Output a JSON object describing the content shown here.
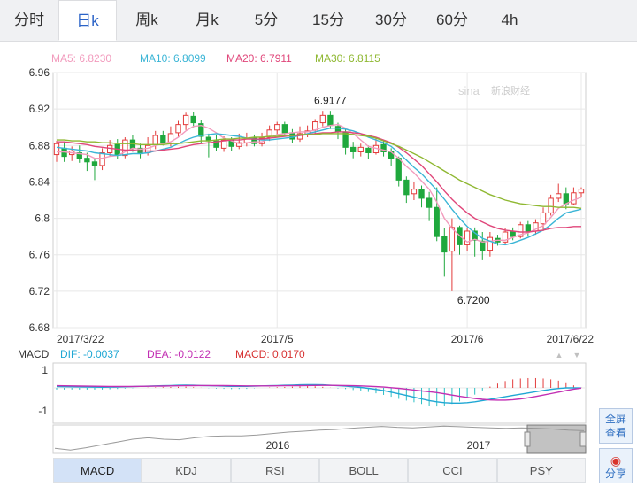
{
  "tabs": [
    "分时",
    "日k",
    "周k",
    "月k",
    "5分",
    "15分",
    "30分",
    "60分",
    "4h"
  ],
  "active_tab": 1,
  "ma_legend": [
    {
      "label": "MA5: 6.8230",
      "color": "#f29bbd"
    },
    {
      "label": "MA10: 6.8099",
      "color": "#3bb5d6"
    },
    {
      "label": "MA20: 6.7911",
      "color": "#e0467a"
    },
    {
      "label": "MA30: 6.8115",
      "color": "#8fb832"
    }
  ],
  "watermark": "新浪财经",
  "macd_legend": {
    "name": "MACD",
    "items": [
      {
        "label": "DIF: -0.0037",
        "color": "#1fa7d4"
      },
      {
        "label": "DEA: -0.0122",
        "color": "#c22fb3"
      },
      {
        "label": "MACD: 0.0170",
        "color": "#d73232"
      }
    ]
  },
  "indicator_tabs": [
    "MACD",
    "KDJ",
    "RSI",
    "BOLL",
    "CCI",
    "PSY"
  ],
  "active_indicator": 0,
  "side_buttons": [
    {
      "line1": "全屏",
      "line2": "查看"
    },
    {
      "line1": "分享",
      "line2": ""
    }
  ],
  "colors": {
    "up": "#e33b3b",
    "down": "#1fa83d",
    "grid": "#e8e8e8"
  },
  "chart_data": [
    {
      "type": "candlestick",
      "title": "",
      "ylim": [
        6.68,
        6.96
      ],
      "y_ticks": [
        6.68,
        6.72,
        6.76,
        6.8,
        6.84,
        6.88,
        6.92,
        6.96
      ],
      "y_tick_labels": [
        "6.68",
        "6.72",
        "6.76",
        "6.8",
        "6.84",
        "6.88",
        "6.92",
        "6.96"
      ],
      "x_tick_labels": [
        {
          "label": "2017/3/22",
          "index": 0
        },
        {
          "label": "2017/5",
          "index": 29
        },
        {
          "label": "2017/6",
          "index": 54
        },
        {
          "label": "2017/6/22",
          "index": 69
        }
      ],
      "annotations": [
        {
          "text": "6.9177",
          "index": 36,
          "value": 6.9177
        },
        {
          "text": "6.7200",
          "index": 52,
          "value": 6.72
        }
      ],
      "candles": [
        [
          6.87,
          6.882,
          6.885,
          6.862
        ],
        [
          6.877,
          6.868,
          6.884,
          6.862
        ],
        [
          6.87,
          6.874,
          6.879,
          6.863
        ],
        [
          6.872,
          6.866,
          6.88,
          6.861
        ],
        [
          6.866,
          6.862,
          6.872,
          6.852
        ],
        [
          6.862,
          6.858,
          6.866,
          6.842
        ],
        [
          6.858,
          6.872,
          6.877,
          6.853
        ],
        [
          6.872,
          6.88,
          6.886,
          6.868
        ],
        [
          6.881,
          6.87,
          6.887,
          6.865
        ],
        [
          6.869,
          6.886,
          6.889,
          6.866
        ],
        [
          6.886,
          6.877,
          6.891,
          6.873
        ],
        [
          6.877,
          6.871,
          6.882,
          6.866
        ],
        [
          6.872,
          6.88,
          6.889,
          6.869
        ],
        [
          6.881,
          6.891,
          6.896,
          6.876
        ],
        [
          6.891,
          6.883,
          6.896,
          6.88
        ],
        [
          6.882,
          6.893,
          6.901,
          6.879
        ],
        [
          6.894,
          6.903,
          6.907,
          6.889
        ],
        [
          6.903,
          6.913,
          6.916,
          6.897
        ],
        [
          6.912,
          6.905,
          6.917,
          6.9
        ],
        [
          6.904,
          6.89,
          6.908,
          6.882
        ],
        [
          6.889,
          6.885,
          6.893,
          6.867
        ],
        [
          6.885,
          6.878,
          6.891,
          6.874
        ],
        [
          6.877,
          6.886,
          6.89,
          6.873
        ],
        [
          6.886,
          6.879,
          6.889,
          6.874
        ],
        [
          6.879,
          6.883,
          6.893,
          6.876
        ],
        [
          6.883,
          6.888,
          6.894,
          6.879
        ],
        [
          6.888,
          6.882,
          6.892,
          6.879
        ],
        [
          6.882,
          6.888,
          6.894,
          6.879
        ],
        [
          6.889,
          6.897,
          6.902,
          6.885
        ],
        [
          6.897,
          6.903,
          6.906,
          6.891
        ],
        [
          6.903,
          6.894,
          6.906,
          6.89
        ],
        [
          6.894,
          6.887,
          6.898,
          6.883
        ],
        [
          6.887,
          6.893,
          6.901,
          6.884
        ],
        [
          6.892,
          6.896,
          6.902,
          6.889
        ],
        [
          6.897,
          6.906,
          6.909,
          6.893
        ],
        [
          6.905,
          6.913,
          6.918,
          6.901
        ],
        [
          6.913,
          6.902,
          6.918,
          6.898
        ],
        [
          6.901,
          6.895,
          6.905,
          6.887
        ],
        [
          6.895,
          6.878,
          6.899,
          6.87
        ],
        [
          6.878,
          6.873,
          6.884,
          6.866
        ],
        [
          6.873,
          6.878,
          6.882,
          6.868
        ],
        [
          6.877,
          6.872,
          6.88,
          6.865
        ],
        [
          6.872,
          6.88,
          6.888,
          6.87
        ],
        [
          6.881,
          6.873,
          6.886,
          6.868
        ],
        [
          6.873,
          6.866,
          6.877,
          6.857
        ],
        [
          6.866,
          6.842,
          6.868,
          6.835
        ],
        [
          6.842,
          6.826,
          6.846,
          6.817
        ],
        [
          6.827,
          6.832,
          6.84,
          6.82
        ],
        [
          6.832,
          6.822,
          6.836,
          6.812
        ],
        [
          6.822,
          6.812,
          6.829,
          6.797
        ],
        [
          6.812,
          6.78,
          6.834,
          6.775
        ],
        [
          6.78,
          6.763,
          6.789,
          6.736
        ],
        [
          6.764,
          6.79,
          6.8,
          6.72
        ],
        [
          6.79,
          6.771,
          6.792,
          6.76
        ],
        [
          6.771,
          6.786,
          6.79,
          6.764
        ],
        [
          6.786,
          6.776,
          6.79,
          6.758
        ],
        [
          6.775,
          6.765,
          6.785,
          6.754
        ],
        [
          6.765,
          6.779,
          6.785,
          6.758
        ],
        [
          6.778,
          6.774,
          6.782,
          6.77
        ],
        [
          6.774,
          6.785,
          6.789,
          6.771
        ],
        [
          6.785,
          6.78,
          6.79,
          6.776
        ],
        [
          6.78,
          6.793,
          6.796,
          6.778
        ],
        [
          6.793,
          6.786,
          6.797,
          6.78
        ],
        [
          6.786,
          6.795,
          6.799,
          6.782
        ],
        [
          6.794,
          6.806,
          6.812,
          6.786
        ],
        [
          6.806,
          6.822,
          6.826,
          6.803
        ],
        [
          6.822,
          6.827,
          6.838,
          6.818
        ],
        [
          6.827,
          6.816,
          6.834,
          6.81
        ],
        [
          6.816,
          6.828,
          6.834,
          6.815
        ],
        [
          6.828,
          6.832,
          6.834,
          6.823
        ]
      ],
      "ma5": [
        6.873,
        6.873,
        6.872,
        6.871,
        6.87,
        6.866,
        6.866,
        6.868,
        6.869,
        6.873,
        6.877,
        6.876,
        6.877,
        6.88,
        6.882,
        6.884,
        6.889,
        6.896,
        6.901,
        6.902,
        6.899,
        6.894,
        6.888,
        6.885,
        6.882,
        6.883,
        6.884,
        6.884,
        6.888,
        6.892,
        6.893,
        6.894,
        6.895,
        6.895,
        6.897,
        6.9,
        6.902,
        6.903,
        6.899,
        6.893,
        6.886,
        6.879,
        6.877,
        6.875,
        6.873,
        6.866,
        6.857,
        6.85,
        6.841,
        6.832,
        6.818,
        6.8,
        6.789,
        6.781,
        6.774,
        6.777,
        6.774,
        6.775,
        6.776,
        6.776,
        6.779,
        6.782,
        6.784,
        6.788,
        6.792,
        6.801,
        6.811,
        6.816,
        6.82,
        6.823
      ],
      "ma10": [
        6.878,
        6.877,
        6.876,
        6.875,
        6.874,
        6.872,
        6.871,
        6.87,
        6.869,
        6.87,
        6.871,
        6.871,
        6.872,
        6.874,
        6.876,
        6.878,
        6.882,
        6.886,
        6.889,
        6.891,
        6.892,
        6.893,
        6.892,
        6.891,
        6.89,
        6.888,
        6.887,
        6.886,
        6.886,
        6.887,
        6.888,
        6.889,
        6.891,
        6.893,
        6.895,
        6.897,
        6.899,
        6.899,
        6.898,
        6.896,
        6.893,
        6.889,
        6.886,
        6.883,
        6.879,
        6.872,
        6.864,
        6.856,
        6.849,
        6.84,
        6.831,
        6.821,
        6.81,
        6.8,
        6.791,
        6.784,
        6.778,
        6.775,
        6.772,
        6.771,
        6.773,
        6.776,
        6.779,
        6.783,
        6.787,
        6.793,
        6.8,
        6.806,
        6.808,
        6.81
      ],
      "ma20": [
        6.884,
        6.884,
        6.883,
        6.882,
        6.881,
        6.879,
        6.878,
        6.877,
        6.876,
        6.875,
        6.875,
        6.874,
        6.874,
        6.874,
        6.875,
        6.876,
        6.877,
        6.879,
        6.881,
        6.882,
        6.883,
        6.884,
        6.885,
        6.886,
        6.886,
        6.887,
        6.887,
        6.887,
        6.888,
        6.889,
        6.89,
        6.891,
        6.891,
        6.892,
        6.893,
        6.894,
        6.894,
        6.895,
        6.895,
        6.894,
        6.893,
        6.891,
        6.889,
        6.886,
        6.883,
        6.878,
        6.872,
        6.865,
        6.858,
        6.849,
        6.84,
        6.83,
        6.821,
        6.813,
        6.806,
        6.8,
        6.796,
        6.792,
        6.789,
        6.787,
        6.786,
        6.785,
        6.785,
        6.786,
        6.787,
        6.789,
        6.79,
        6.79,
        6.791,
        6.791
      ],
      "ma30": [
        6.886,
        6.886,
        6.885,
        6.885,
        6.884,
        6.884,
        6.883,
        6.883,
        6.882,
        6.882,
        6.882,
        6.881,
        6.881,
        6.881,
        6.881,
        6.882,
        6.882,
        6.883,
        6.884,
        6.885,
        6.885,
        6.886,
        6.887,
        6.887,
        6.888,
        6.888,
        6.889,
        6.889,
        6.89,
        6.89,
        6.891,
        6.891,
        6.892,
        6.892,
        6.892,
        6.893,
        6.893,
        6.893,
        6.893,
        6.892,
        6.891,
        6.89,
        6.888,
        6.885,
        6.882,
        6.879,
        6.875,
        6.871,
        6.867,
        6.862,
        6.857,
        6.852,
        6.847,
        6.842,
        6.838,
        6.834,
        6.83,
        6.826,
        6.823,
        6.82,
        6.818,
        6.816,
        6.815,
        6.814,
        6.813,
        6.813,
        6.812,
        6.812,
        6.812,
        6.811
      ]
    },
    {
      "type": "macd",
      "y_tick_labels": [
        "1",
        "-1"
      ],
      "dif": [
        0.06,
        0.055,
        0.05,
        0.045,
        0.04,
        0.035,
        0.03,
        0.035,
        0.04,
        0.05,
        0.06,
        0.07,
        0.08,
        0.09,
        0.1,
        0.11,
        0.12,
        0.13,
        0.12,
        0.11,
        0.1,
        0.09,
        0.08,
        0.07,
        0.07,
        0.07,
        0.08,
        0.09,
        0.1,
        0.11,
        0.12,
        0.13,
        0.14,
        0.15,
        0.15,
        0.14,
        0.12,
        0.1,
        0.08,
        0.05,
        0.02,
        -0.02,
        -0.07,
        -0.13,
        -0.2,
        -0.28,
        -0.36,
        -0.44,
        -0.52,
        -0.6,
        -0.66,
        -0.7,
        -0.72,
        -0.72,
        -0.7,
        -0.66,
        -0.6,
        -0.54,
        -0.48,
        -0.42,
        -0.36,
        -0.3,
        -0.24,
        -0.18,
        -0.12,
        -0.07,
        -0.03,
        0.0,
        -0.002,
        -0.0037
      ],
      "dea": [
        0.1,
        0.095,
        0.09,
        0.085,
        0.08,
        0.075,
        0.07,
        0.068,
        0.066,
        0.066,
        0.068,
        0.07,
        0.074,
        0.078,
        0.084,
        0.09,
        0.096,
        0.102,
        0.105,
        0.107,
        0.107,
        0.106,
        0.103,
        0.1,
        0.096,
        0.093,
        0.09,
        0.09,
        0.092,
        0.094,
        0.098,
        0.102,
        0.106,
        0.11,
        0.114,
        0.116,
        0.116,
        0.114,
        0.108,
        0.1,
        0.09,
        0.076,
        0.058,
        0.036,
        0.01,
        -0.02,
        -0.06,
        -0.1,
        -0.14,
        -0.18,
        -0.22,
        -0.28,
        -0.34,
        -0.4,
        -0.45,
        -0.5,
        -0.54,
        -0.57,
        -0.58,
        -0.58,
        -0.56,
        -0.52,
        -0.47,
        -0.41,
        -0.34,
        -0.27,
        -0.2,
        -0.13,
        -0.06,
        -0.0122
      ],
      "macd": [
        -0.08,
        -0.08,
        -0.08,
        -0.08,
        -0.08,
        -0.08,
        -0.08,
        -0.066,
        -0.052,
        -0.032,
        -0.016,
        0.0,
        0.012,
        0.024,
        0.032,
        0.04,
        0.048,
        0.056,
        0.03,
        0.006,
        -0.014,
        -0.032,
        -0.046,
        -0.06,
        -0.052,
        -0.046,
        -0.02,
        0.0,
        0.016,
        0.032,
        0.044,
        0.056,
        0.068,
        0.08,
        0.072,
        0.048,
        0.008,
        -0.028,
        -0.056,
        -0.1,
        -0.14,
        -0.192,
        -0.256,
        -0.332,
        -0.42,
        -0.52,
        -0.6,
        -0.68,
        -0.76,
        -0.84,
        -0.88,
        -0.84,
        -0.76,
        -0.64,
        -0.5,
        -0.32,
        -0.12,
        0.06,
        0.2,
        0.32,
        0.4,
        0.44,
        0.46,
        0.46,
        0.44,
        0.4,
        0.34,
        0.26,
        0.116,
        0.017
      ]
    },
    {
      "type": "area",
      "x_tick_labels": [
        "2016",
        "2017"
      ],
      "values": [
        6.18,
        6.12,
        6.2,
        6.3,
        6.4,
        6.5,
        6.55,
        6.5,
        6.48,
        6.55,
        6.6,
        6.62,
        6.62,
        6.65,
        6.7,
        6.75,
        6.78,
        6.82,
        6.84,
        6.88,
        6.92,
        6.95,
        6.92,
        6.9,
        6.93,
        6.96,
        6.94,
        6.92,
        6.9,
        6.88,
        6.9,
        6.88,
        6.86,
        6.82,
        6.8
      ],
      "ylim": [
        6.0,
        7.0
      ]
    }
  ]
}
